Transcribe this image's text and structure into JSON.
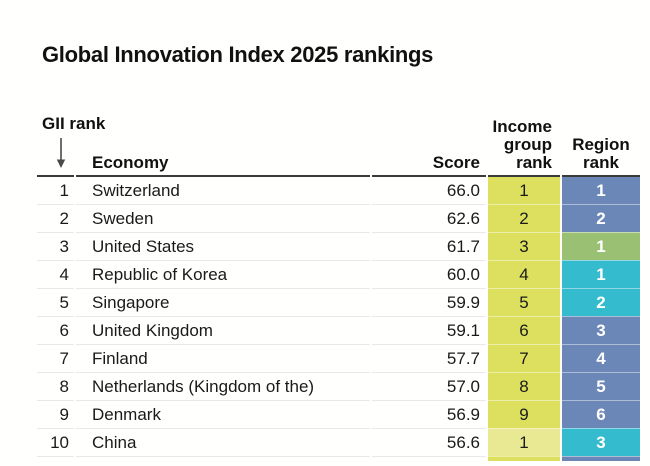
{
  "title": "Global Innovation Index 2025 rankings",
  "colors": {
    "income_yellow": "#dde05e",
    "income_pale": "#eae993",
    "region_blue": "#6b87b7",
    "region_green": "#9ac173",
    "region_teal": "#35bbce",
    "header_border": "#3a3a3a",
    "row_separator": "#e8e8e8",
    "arrow": "#4a4a4a"
  },
  "table": {
    "headers": {
      "gii_rank": "GII rank",
      "sort_arrow_icon": "down-arrow",
      "economy": "Economy",
      "score": "Score",
      "income_group_rank": [
        "Income",
        "group",
        "rank"
      ],
      "region_rank": [
        "Region",
        "rank"
      ]
    },
    "rows": [
      {
        "rank": "1",
        "economy": "Switzerland",
        "score": "66.0",
        "income_rank": "1",
        "income_color": "income_yellow",
        "region_rank": "1",
        "region_color": "region_blue"
      },
      {
        "rank": "2",
        "economy": "Sweden",
        "score": "62.6",
        "income_rank": "2",
        "income_color": "income_yellow",
        "region_rank": "2",
        "region_color": "region_blue"
      },
      {
        "rank": "3",
        "economy": "United States",
        "score": "61.7",
        "income_rank": "3",
        "income_color": "income_yellow",
        "region_rank": "1",
        "region_color": "region_green"
      },
      {
        "rank": "4",
        "economy": "Republic of Korea",
        "score": "60.0",
        "income_rank": "4",
        "income_color": "income_yellow",
        "region_rank": "1",
        "region_color": "region_teal"
      },
      {
        "rank": "5",
        "economy": "Singapore",
        "score": "59.9",
        "income_rank": "5",
        "income_color": "income_yellow",
        "region_rank": "2",
        "region_color": "region_teal"
      },
      {
        "rank": "6",
        "economy": "United Kingdom",
        "score": "59.1",
        "income_rank": "6",
        "income_color": "income_yellow",
        "region_rank": "3",
        "region_color": "region_blue"
      },
      {
        "rank": "7",
        "economy": "Finland",
        "score": "57.7",
        "income_rank": "7",
        "income_color": "income_yellow",
        "region_rank": "4",
        "region_color": "region_blue"
      },
      {
        "rank": "8",
        "economy": "Netherlands (Kingdom of the)",
        "score": "57.0",
        "income_rank": "8",
        "income_color": "income_yellow",
        "region_rank": "5",
        "region_color": "region_blue"
      },
      {
        "rank": "9",
        "economy": "Denmark",
        "score": "56.9",
        "income_rank": "9",
        "income_color": "income_yellow",
        "region_rank": "6",
        "region_color": "region_blue"
      },
      {
        "rank": "10",
        "economy": "China",
        "score": "56.6",
        "income_rank": "1",
        "income_color": "income_pale",
        "region_rank": "3",
        "region_color": "region_teal"
      }
    ],
    "partial_next_row": {
      "income_color": "income_yellow",
      "region_color": "region_blue"
    }
  },
  "chart_data": {
    "type": "table",
    "title": "Global Innovation Index 2025 rankings",
    "columns": [
      "GII rank",
      "Economy",
      "Score",
      "Income group rank",
      "Region rank"
    ],
    "rows": [
      [
        1,
        "Switzerland",
        66.0,
        1,
        1
      ],
      [
        2,
        "Sweden",
        62.6,
        2,
        2
      ],
      [
        3,
        "United States",
        61.7,
        3,
        1
      ],
      [
        4,
        "Republic of Korea",
        60.0,
        4,
        1
      ],
      [
        5,
        "Singapore",
        59.9,
        5,
        2
      ],
      [
        6,
        "United Kingdom",
        59.1,
        6,
        3
      ],
      [
        7,
        "Finland",
        57.7,
        7,
        4
      ],
      [
        8,
        "Netherlands (Kingdom of the)",
        57.0,
        8,
        5
      ],
      [
        9,
        "Denmark",
        56.9,
        9,
        6
      ],
      [
        10,
        "China",
        56.6,
        1,
        3
      ]
    ],
    "notes": "Income group rank cells shaded yellow (China pale yellow); Region rank cells shaded blue (Europe), green (United States), teal (Korea/Singapore/China); white bold digits in Region rank column; table sorted by GII rank descending score."
  }
}
